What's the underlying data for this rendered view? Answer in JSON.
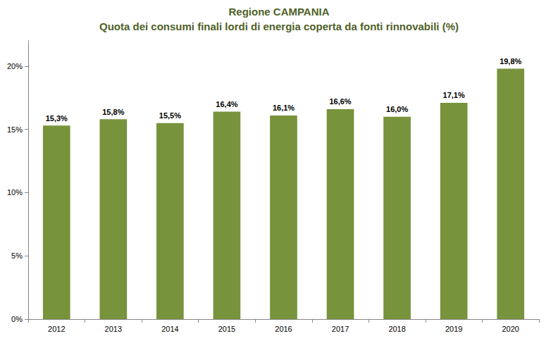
{
  "chart_data": {
    "type": "bar",
    "title": "Regione CAMPANIA",
    "subtitle": "Quota dei consumi finali lordi di energia coperta da fonti rinnovabili (%)",
    "categories": [
      "2012",
      "2013",
      "2014",
      "2015",
      "2016",
      "2017",
      "2018",
      "2019",
      "2020"
    ],
    "values": [
      15.3,
      15.8,
      15.5,
      16.4,
      16.1,
      16.6,
      16.0,
      17.1,
      19.8
    ],
    "value_labels": [
      "15,3%",
      "15,8%",
      "15,5%",
      "16,4%",
      "16,1%",
      "16,6%",
      "16,0%",
      "17,1%",
      "19,8%"
    ],
    "color": "#77933c",
    "ylim": [
      0,
      22
    ],
    "yticks": [
      {
        "value": 0,
        "label": "0%"
      },
      {
        "value": 5,
        "label": "5%"
      },
      {
        "value": 10,
        "label": "10%"
      },
      {
        "value": 15,
        "label": "15%"
      },
      {
        "value": 20,
        "label": "20%"
      }
    ],
    "grid": false,
    "data_labels": true
  }
}
